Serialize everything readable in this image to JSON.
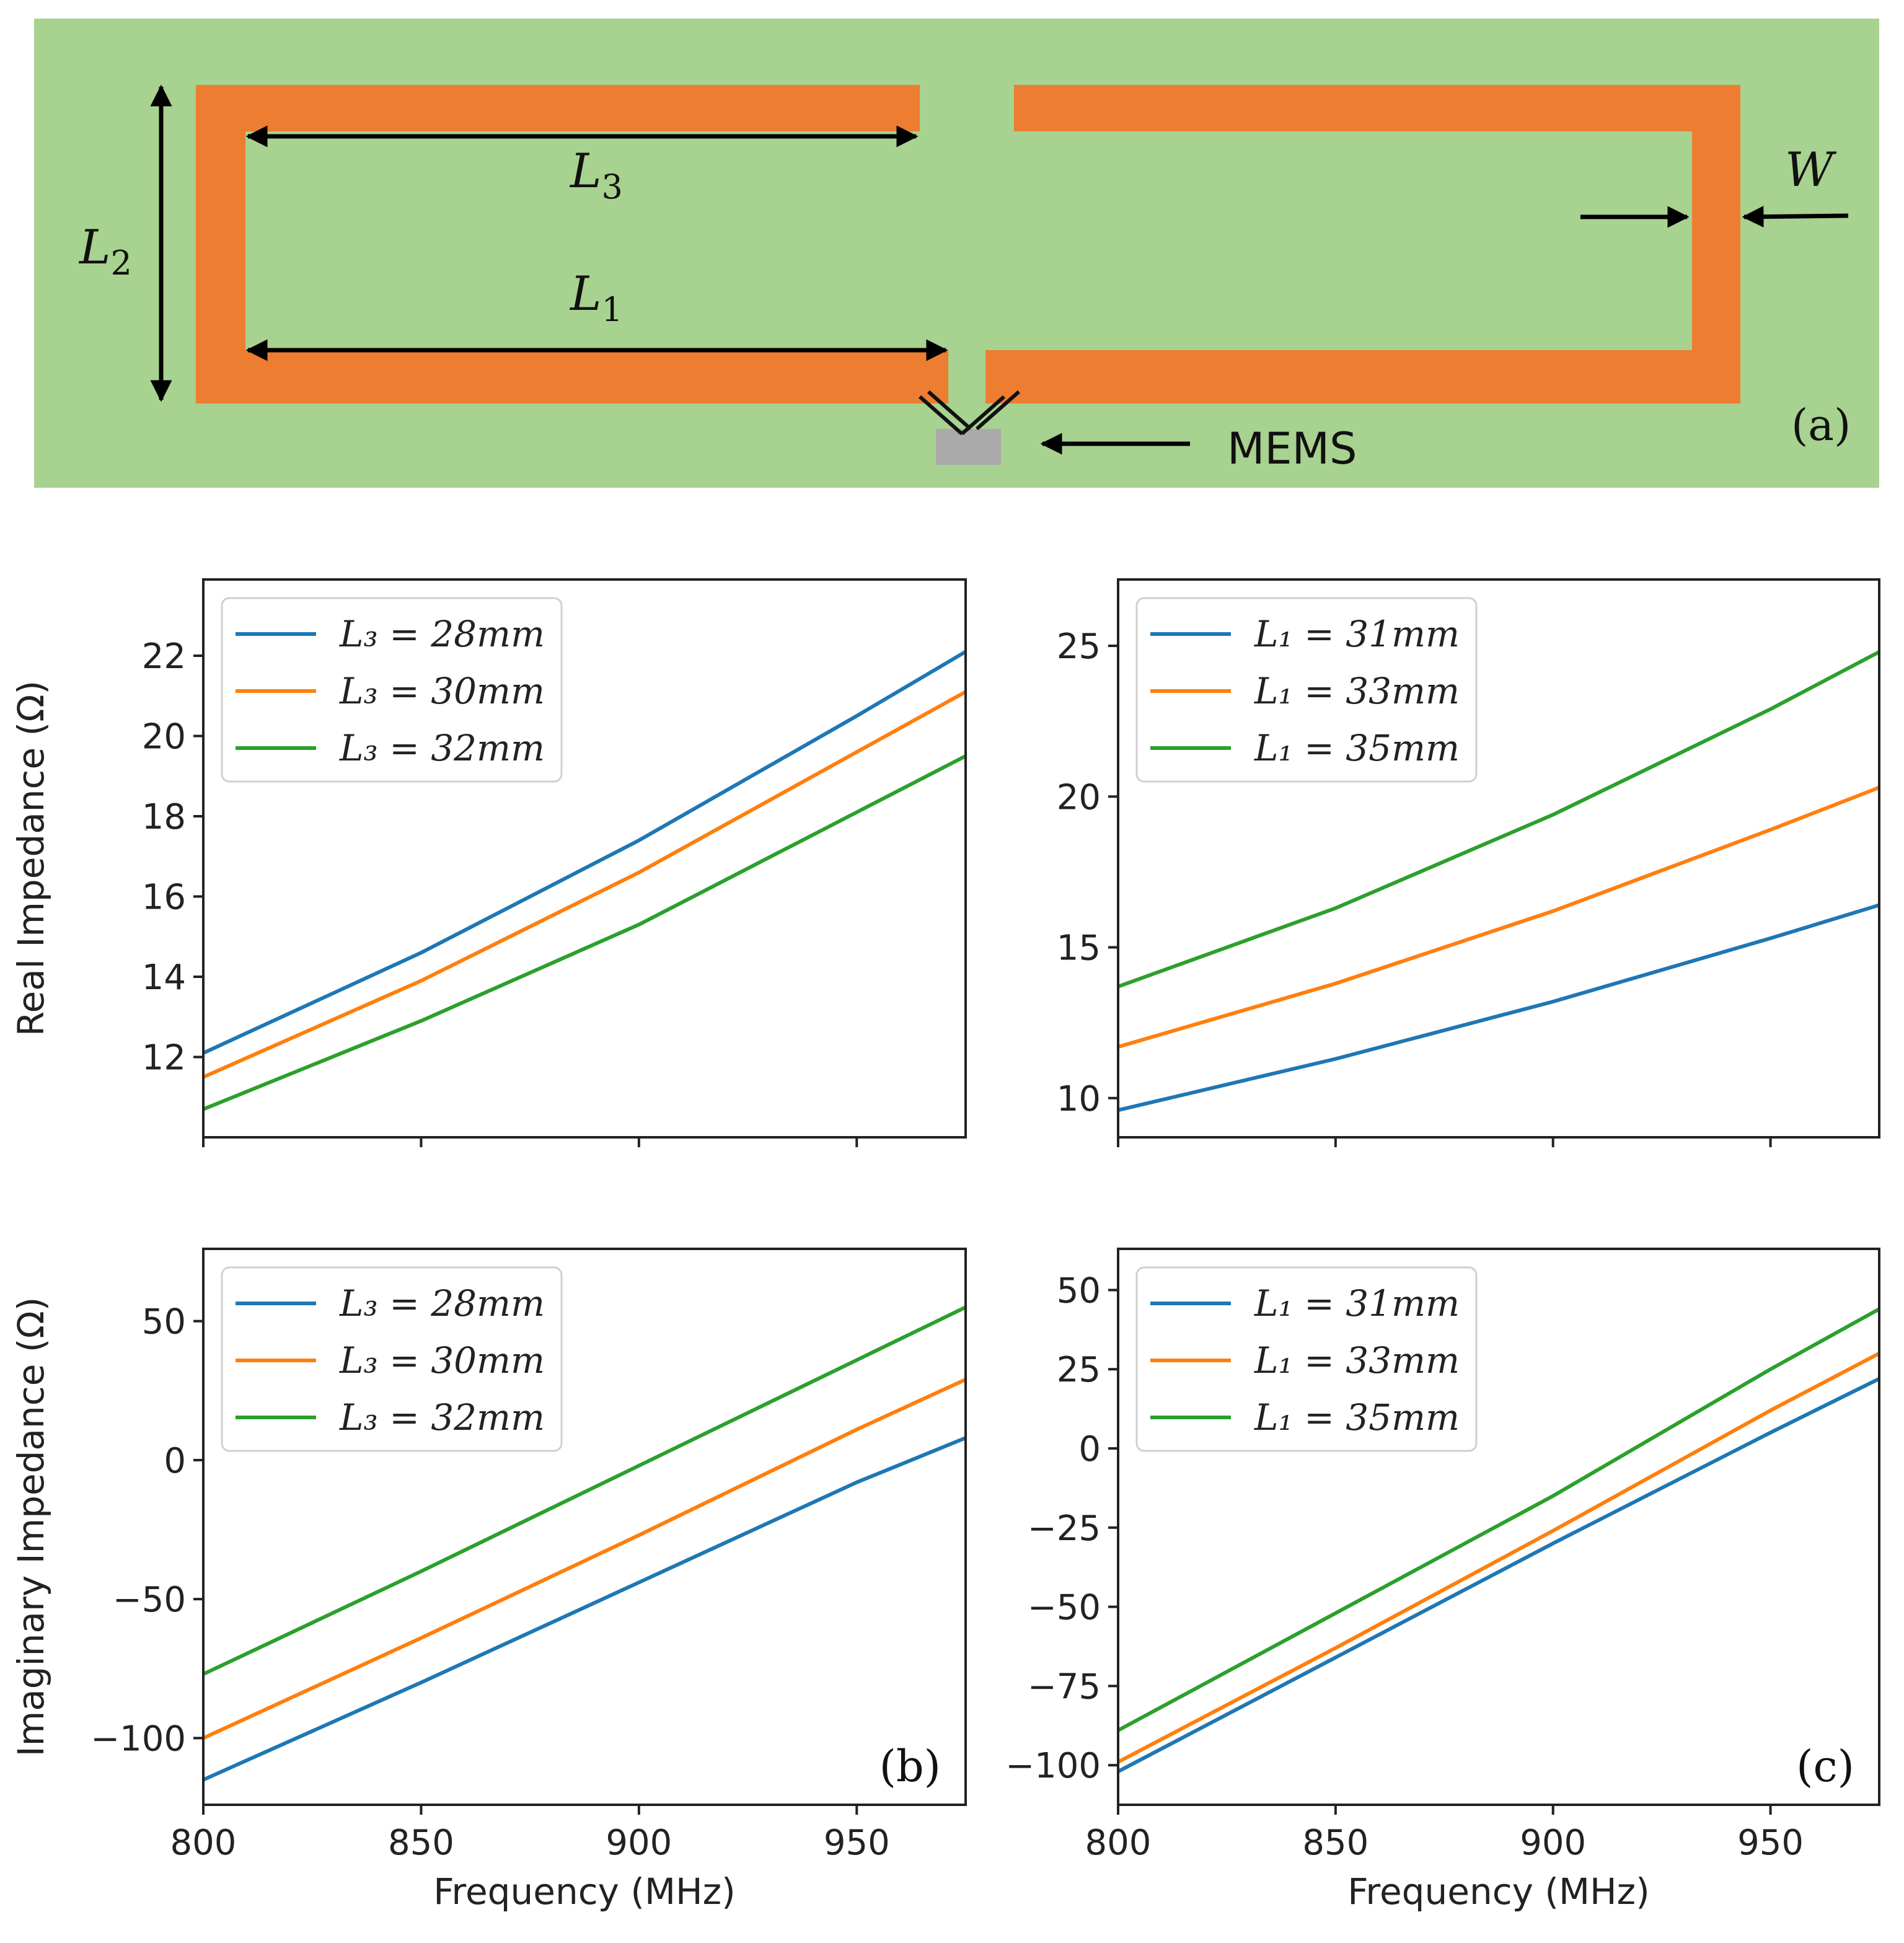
{
  "diagram": {
    "panel_label": "(a)",
    "labels": {
      "L1": "L1",
      "L2": "L2",
      "L3": "L3",
      "W": "W",
      "mems": "MEMS"
    },
    "colors": {
      "substrate": "#a7d28f",
      "trace": "#ed7d31",
      "mems_block": "#aaaaaa"
    }
  },
  "colors": {
    "series": [
      "#1f77b4",
      "#ff7f0e",
      "#2ca02c"
    ]
  },
  "chart_data": [
    {
      "id": "b_real",
      "type": "line",
      "panel_label": "",
      "xlabel": "",
      "ylabel": "Real Impedance (Ω)",
      "xlim": [
        800,
        975
      ],
      "ylim": [
        10,
        23.9
      ],
      "x_ticks": [
        800,
        850,
        900,
        950
      ],
      "show_x_tick_labels": false,
      "y_ticks": [
        12,
        14,
        16,
        18,
        20,
        22
      ],
      "y_tick_labels": [
        "12",
        "14",
        "16",
        "18",
        "20",
        "22"
      ],
      "legend_location": "upper-left",
      "series": [
        {
          "name": "L₃ = 28mm",
          "x": [
            800,
            850,
            900,
            950,
            975
          ],
          "y": [
            12.1,
            14.6,
            17.4,
            20.5,
            22.1
          ]
        },
        {
          "name": "L₃ = 30mm",
          "x": [
            800,
            850,
            900,
            950,
            975
          ],
          "y": [
            11.5,
            13.9,
            16.6,
            19.6,
            21.1
          ]
        },
        {
          "name": "L₃ = 32mm",
          "x": [
            800,
            850,
            900,
            950,
            975
          ],
          "y": [
            10.7,
            12.9,
            15.3,
            18.1,
            19.5
          ]
        }
      ]
    },
    {
      "id": "c_real",
      "type": "line",
      "panel_label": "",
      "xlabel": "",
      "ylabel": "",
      "xlim": [
        800,
        975
      ],
      "ylim": [
        8.7,
        27.2
      ],
      "x_ticks": [
        800,
        850,
        900,
        950
      ],
      "show_x_tick_labels": false,
      "y_ticks": [
        10,
        15,
        20,
        25
      ],
      "y_tick_labels": [
        "10",
        "15",
        "20",
        "25"
      ],
      "legend_location": "upper-left",
      "series": [
        {
          "name": "L₁ = 31mm",
          "x": [
            800,
            850,
            900,
            950,
            975
          ],
          "y": [
            9.6,
            11.3,
            13.2,
            15.3,
            16.4
          ]
        },
        {
          "name": "L₁ = 33mm",
          "x": [
            800,
            850,
            900,
            950,
            975
          ],
          "y": [
            11.7,
            13.8,
            16.2,
            18.9,
            20.3
          ]
        },
        {
          "name": "L₁ = 35mm",
          "x": [
            800,
            850,
            900,
            950,
            975
          ],
          "y": [
            13.7,
            16.3,
            19.4,
            22.9,
            24.8
          ]
        }
      ]
    },
    {
      "id": "b_imag",
      "type": "line",
      "panel_label": "(b)",
      "xlabel": "Frequency (MHz)",
      "ylabel": "Imaginary Impedance (Ω)",
      "xlim": [
        800,
        975
      ],
      "ylim": [
        -124,
        76
      ],
      "x_ticks": [
        800,
        850,
        900,
        950
      ],
      "x_tick_labels": [
        "800",
        "850",
        "900",
        "950"
      ],
      "show_x_tick_labels": true,
      "y_ticks": [
        -100,
        -50,
        0,
        50
      ],
      "y_tick_labels": [
        "−100",
        "−50",
        "0",
        "50"
      ],
      "legend_location": "upper-left",
      "series": [
        {
          "name": "L₃ = 28mm",
          "x": [
            800,
            850,
            900,
            950,
            975
          ],
          "y": [
            -115,
            -80,
            -44,
            -8,
            8
          ]
        },
        {
          "name": "L₃ = 30mm",
          "x": [
            800,
            850,
            900,
            950,
            975
          ],
          "y": [
            -100,
            -64,
            -27,
            11,
            29
          ]
        },
        {
          "name": "L₃ = 32mm",
          "x": [
            800,
            850,
            900,
            950,
            975
          ],
          "y": [
            -77,
            -40,
            -2,
            36,
            55
          ]
        }
      ]
    },
    {
      "id": "c_imag",
      "type": "line",
      "panel_label": "(c)",
      "xlabel": "Frequency (MHz)",
      "ylabel": "",
      "xlim": [
        800,
        975
      ],
      "ylim": [
        -112.5,
        63
      ],
      "x_ticks": [
        800,
        850,
        900,
        950
      ],
      "x_tick_labels": [
        "800",
        "850",
        "900",
        "950"
      ],
      "show_x_tick_labels": true,
      "y_ticks": [
        -100,
        -75,
        -50,
        -25,
        0,
        25,
        50
      ],
      "y_tick_labels": [
        "−100",
        "−75",
        "−50",
        "−25",
        "0",
        "25",
        "50"
      ],
      "legend_location": "upper-left",
      "series": [
        {
          "name": "L₁ = 31mm",
          "x": [
            800,
            850,
            900,
            950,
            975
          ],
          "y": [
            -102,
            -66,
            -30,
            5,
            22
          ]
        },
        {
          "name": "L₁ = 33mm",
          "x": [
            800,
            850,
            900,
            950,
            975
          ],
          "y": [
            -99,
            -63,
            -26,
            12,
            30
          ]
        },
        {
          "name": "L₁ = 35mm",
          "x": [
            800,
            850,
            900,
            950,
            975
          ],
          "y": [
            -89,
            -52,
            -15,
            25,
            44
          ]
        }
      ]
    }
  ]
}
